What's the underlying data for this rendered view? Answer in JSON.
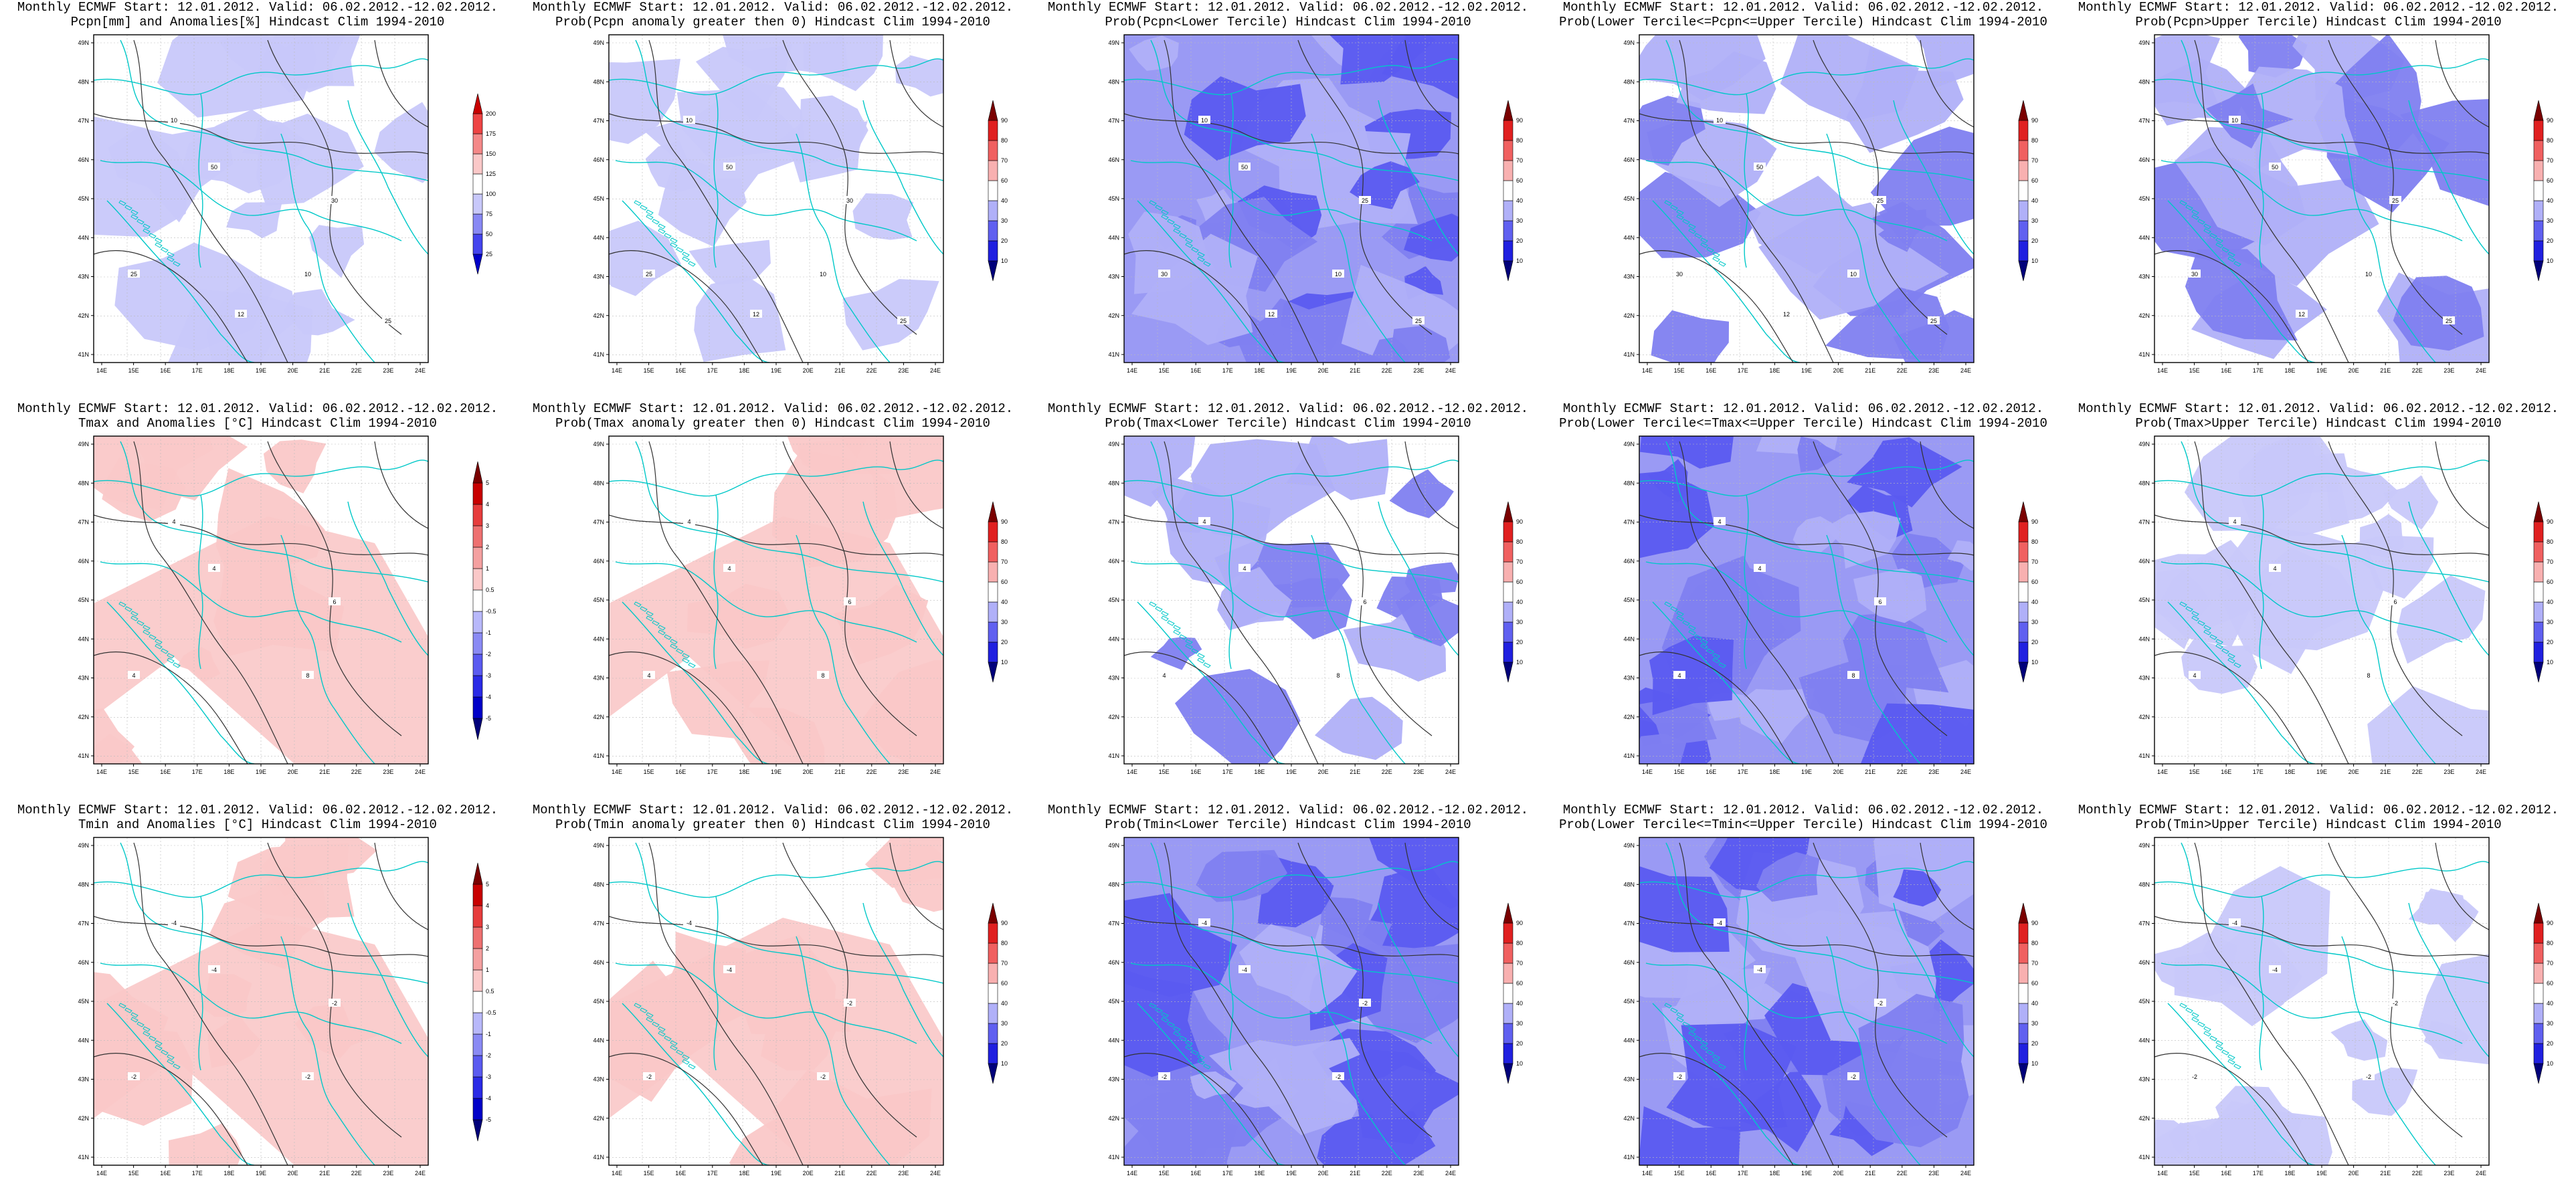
{
  "lat_labels": [
    "41N",
    "42N",
    "43N",
    "44N",
    "45N",
    "46N",
    "47N",
    "48N",
    "49N"
  ],
  "lon_labels": [
    "14E",
    "15E",
    "16E",
    "17E",
    "18E",
    "19E",
    "20E",
    "21E",
    "22E",
    "23E",
    "24E"
  ],
  "colorbars": {
    "anom_pcpn": {
      "labels": [
        "25",
        "50",
        "75",
        "100",
        "125",
        "150",
        "175",
        "200"
      ],
      "colors": [
        "#0000c8",
        "#4444ee",
        "#8888f4",
        "#c8c8fa",
        "#ffffff",
        "#fac8c8",
        "#f48888",
        "#ee4444",
        "#c80000"
      ]
    },
    "anom_temp": {
      "labels": [
        "-5",
        "-4",
        "-3",
        "-2",
        "-1",
        "-0.5",
        "0.5",
        "1",
        "2",
        "3",
        "4",
        "5"
      ],
      "colors": [
        "#00007a",
        "#0000c8",
        "#2a2ae6",
        "#5a5af0",
        "#8a8af4",
        "#b8b8fa",
        "#ffffff",
        "#fac8c8",
        "#f4a0a0",
        "#ee7070",
        "#e63c3c",
        "#c80000",
        "#7a0000"
      ]
    },
    "prob": {
      "labels": [
        "10",
        "20",
        "30",
        "40",
        "60",
        "70",
        "80",
        "90"
      ],
      "colors": [
        "#00007a",
        "#2020e0",
        "#6060f0",
        "#b0b0f8",
        "#ffffff",
        "#f8b0b0",
        "#f06060",
        "#e02020",
        "#7a0000"
      ]
    }
  },
  "panels": [
    {
      "id": "pcpn-anom",
      "title1": "Monthly ECMWF Start: 12.01.2012. Valid: 06.02.2012.-12.02.2012.",
      "title2": "Pcpn[mm] and Anomalies[%] Hindcast Clim 1994-2010",
      "colorbar": "anom_pcpn",
      "shading": "light",
      "contour_labels": [
        "10",
        "50",
        "25",
        "30",
        "10",
        "12",
        "25"
      ]
    },
    {
      "id": "pcpn-prob-pos",
      "title1": "Monthly ECMWF Start: 12.01.2012. Valid: 06.02.2012.-12.02.2012.",
      "title2": "Prob(Pcpn anomaly greater then 0) Hindcast Clim 1994-2010",
      "colorbar": "prob",
      "shading": "light",
      "contour_labels": [
        "10",
        "50",
        "25",
        "30",
        "10",
        "12",
        "25"
      ]
    },
    {
      "id": "pcpn-prob-lower",
      "title1": "Monthly ECMWF Start: 12.01.2012. Valid: 06.02.2012.-12.02.2012.",
      "title2": "Prob(Pcpn<Lower Tercile) Hindcast Clim 1994-2010",
      "colorbar": "prob",
      "shading": "dense",
      "contour_labels": [
        "10",
        "50",
        "30",
        "25",
        "10",
        "12",
        "25"
      ]
    },
    {
      "id": "pcpn-prob-middle",
      "title1": "Monthly ECMWF Start: 12.01.2012. Valid: 06.02.2012.-12.02.2012.",
      "title2": "Prob(Lower Tercile<=Pcpn<=Upper Tercile) Hindcast Clim 1994-2010",
      "colorbar": "prob",
      "shading": "medium",
      "contour_labels": [
        "10",
        "50",
        "30",
        "25",
        "10",
        "12",
        "25"
      ]
    },
    {
      "id": "pcpn-prob-upper",
      "title1": "Monthly ECMWF Start: 12.01.2012. Valid: 06.02.2012.-12.02.2012.",
      "title2": "Prob(Pcpn>Upper Tercile) Hindcast Clim 1994-2010",
      "colorbar": "prob",
      "shading": "medium",
      "contour_labels": [
        "10",
        "50",
        "30",
        "25",
        "10",
        "12",
        "25"
      ]
    },
    {
      "id": "tmax-anom",
      "title1": "Monthly ECMWF Start: 12.01.2012. Valid: 06.02.2012.-12.02.2012.",
      "title2": "Tmax and Anomalies [°C] Hindcast Clim 1994-2010",
      "colorbar": "anom_temp",
      "shading": "pink",
      "contour_labels": [
        "4",
        "4",
        "4",
        "6",
        "8"
      ]
    },
    {
      "id": "tmax-prob-pos",
      "title1": "Monthly ECMWF Start: 12.01.2012. Valid: 06.02.2012.-12.02.2012.",
      "title2": "Prob(Tmax anomaly greater then 0) Hindcast Clim 1994-2010",
      "colorbar": "prob",
      "shading": "pink",
      "contour_labels": [
        "4",
        "4",
        "4",
        "6",
        "8"
      ]
    },
    {
      "id": "tmax-prob-lower",
      "title1": "Monthly ECMWF Start: 12.01.2012. Valid: 06.02.2012.-12.02.2012.",
      "title2": "Prob(Tmax<Lower Tercile) Hindcast Clim 1994-2010",
      "colorbar": "prob",
      "shading": "medium",
      "contour_labels": [
        "4",
        "4",
        "4",
        "6",
        "8"
      ]
    },
    {
      "id": "tmax-prob-middle",
      "title1": "Monthly ECMWF Start: 12.01.2012. Valid: 06.02.2012.-12.02.2012.",
      "title2": "Prob(Lower Tercile<=Tmax<=Upper Tercile) Hindcast Clim 1994-2010",
      "colorbar": "prob",
      "shading": "dense",
      "contour_labels": [
        "4",
        "4",
        "4",
        "6",
        "8"
      ]
    },
    {
      "id": "tmax-prob-upper",
      "title1": "Monthly ECMWF Start: 12.01.2012. Valid: 06.02.2012.-12.02.2012.",
      "title2": "Prob(Tmax>Upper Tercile) Hindcast Clim 1994-2010",
      "colorbar": "prob",
      "shading": "light",
      "contour_labels": [
        "4",
        "4",
        "4",
        "6",
        "8"
      ]
    },
    {
      "id": "tmin-anom",
      "title1": "Monthly ECMWF Start: 12.01.2012. Valid: 06.02.2012.-12.02.2012.",
      "title2": "Tmin and Anomalies [°C] Hindcast Clim 1994-2010",
      "colorbar": "anom_temp",
      "shading": "pink",
      "contour_labels": [
        "-4",
        "-4",
        "-2",
        "-2",
        "-2"
      ]
    },
    {
      "id": "tmin-prob-pos",
      "title1": "Monthly ECMWF Start: 12.01.2012. Valid: 06.02.2012.-12.02.2012.",
      "title2": "Prob(Tmin anomaly greater then 0) Hindcast Clim 1994-2010",
      "colorbar": "prob",
      "shading": "pink",
      "contour_labels": [
        "-4",
        "-4",
        "-2",
        "-2",
        "-2"
      ]
    },
    {
      "id": "tmin-prob-lower",
      "title1": "Monthly ECMWF Start: 12.01.2012. Valid: 06.02.2012.-12.02.2012.",
      "title2": "Prob(Tmin<Lower Tercile) Hindcast Clim 1994-2010",
      "colorbar": "prob",
      "shading": "dense",
      "contour_labels": [
        "-4",
        "-4",
        "-2",
        "-2",
        "-2"
      ]
    },
    {
      "id": "tmin-prob-middle",
      "title1": "Monthly ECMWF Start: 12.01.2012. Valid: 06.02.2012.-12.02.2012.",
      "title2": "Prob(Lower Tercile<=Tmin<=Upper Tercile) Hindcast Clim 1994-2010",
      "colorbar": "prob",
      "shading": "dense",
      "contour_labels": [
        "-4",
        "-4",
        "-2",
        "-2",
        "-2"
      ]
    },
    {
      "id": "tmin-prob-upper",
      "title1": "Monthly ECMWF Start: 12.01.2012. Valid: 06.02.2012.-12.02.2012.",
      "title2": "Prob(Tmin>Upper Tercile) Hindcast Clim 1994-2010",
      "colorbar": "prob",
      "shading": "light",
      "contour_labels": [
        "-4",
        "-4",
        "-2",
        "-2",
        "-2"
      ]
    }
  ]
}
